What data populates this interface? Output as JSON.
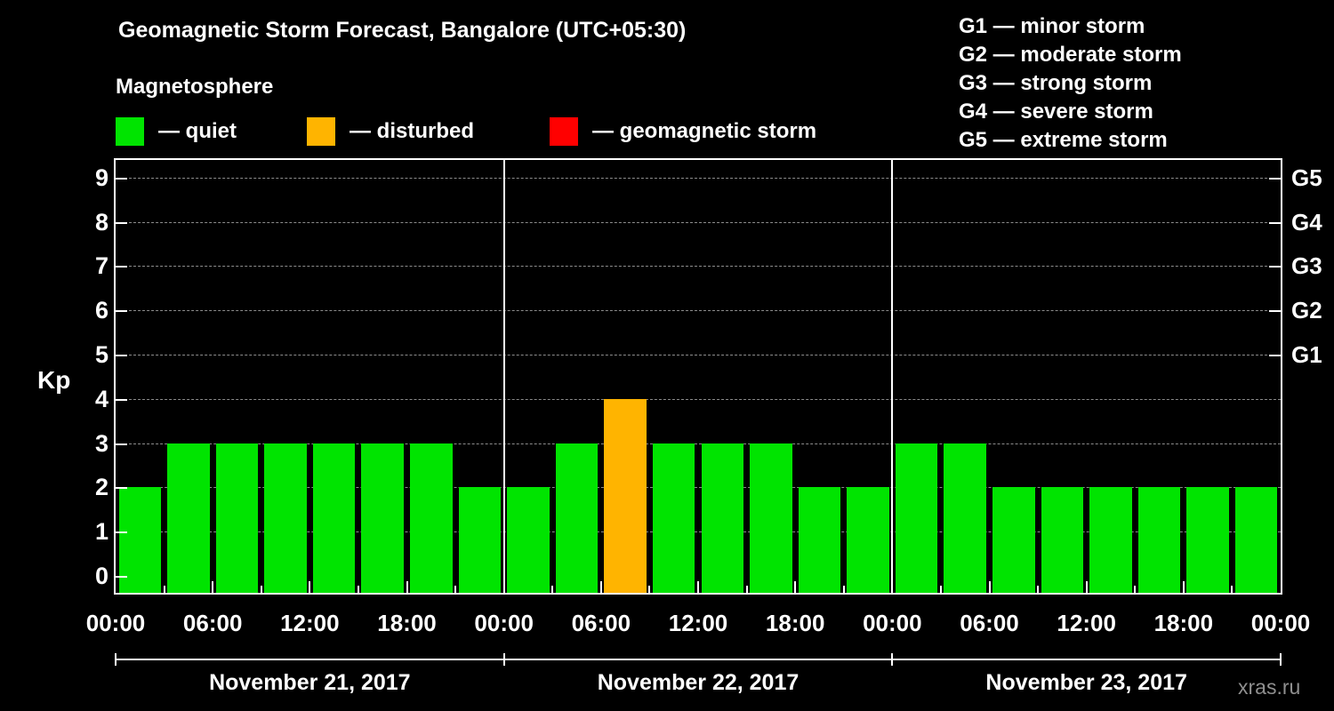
{
  "title": "Geomagnetic Storm Forecast, Bangalore (UTC+05:30)",
  "subtitle": "Magnetosphere",
  "legend": {
    "items": [
      {
        "key": "quiet",
        "label": "— quiet"
      },
      {
        "key": "disturbed",
        "label": "— disturbed"
      },
      {
        "key": "storm",
        "label": "— geomagnetic storm"
      }
    ]
  },
  "g_legend": [
    "G1 — minor storm",
    "G2 — moderate storm",
    "G3 — strong storm",
    "G4 — severe storm",
    "G5 — extreme storm"
  ],
  "watermark": "xras.ru",
  "chart_data": {
    "type": "bar",
    "title": "Geomagnetic Storm Forecast, Bangalore (UTC+05:30)",
    "ylabel": "Kp",
    "ylim": [
      0,
      9.6
    ],
    "y_ticks": [
      0,
      1,
      2,
      3,
      4,
      5,
      6,
      7,
      8,
      9
    ],
    "grid": "dashed horizontal at each Kp level",
    "interval_hours": 3,
    "x_tick_labels": [
      "00:00",
      "06:00",
      "12:00",
      "18:00",
      "00:00",
      "06:00",
      "12:00",
      "18:00",
      "00:00",
      "06:00",
      "12:00",
      "18:00",
      "00:00"
    ],
    "right_axis": [
      {
        "label": "G1",
        "kp": 5
      },
      {
        "label": "G2",
        "kp": 6
      },
      {
        "label": "G3",
        "kp": 7
      },
      {
        "label": "G4",
        "kp": 8
      },
      {
        "label": "G5",
        "kp": 9
      }
    ],
    "days": [
      {
        "date": "November 21, 2017",
        "values": [
          2,
          3,
          3,
          3,
          3,
          3,
          3,
          2
        ]
      },
      {
        "date": "November 22, 2017",
        "values": [
          2,
          3,
          4,
          3,
          3,
          3,
          2,
          2
        ]
      },
      {
        "date": "November 23, 2017",
        "values": [
          3,
          3,
          2,
          2,
          2,
          2,
          2,
          2
        ]
      }
    ],
    "colors": {
      "quiet": "#00e400",
      "disturbed": "#ffb400",
      "storm": "#ff0000"
    },
    "color_rule": {
      "quiet_max_kp": 3,
      "disturbed_max_kp": 4
    }
  }
}
